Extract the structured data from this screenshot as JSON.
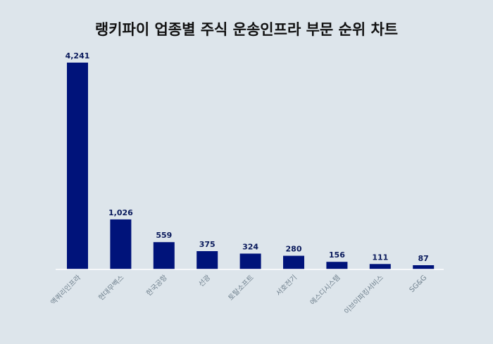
{
  "chart_data": {
    "type": "bar",
    "title": "랭키파이 업종별 주식 운송인프라 부문 순위 차트",
    "categories": [
      "액쿼리인프라",
      "현대무벡스",
      "한국공항",
      "선광",
      "토탈소프트",
      "서호전기",
      "에스디시스템",
      "이브이파킹서비스",
      "SG&G"
    ],
    "values": [
      4241,
      1026,
      559,
      375,
      324,
      280,
      156,
      111,
      87
    ],
    "value_labels": [
      "4,241",
      "1,026",
      "559",
      "375",
      "324",
      "280",
      "156",
      "111",
      "87"
    ],
    "xlabel": "",
    "ylabel": "",
    "ylim": [
      0,
      4241
    ],
    "grid": false,
    "bar_color": "#00137a",
    "background_color": "#dde5eb"
  }
}
